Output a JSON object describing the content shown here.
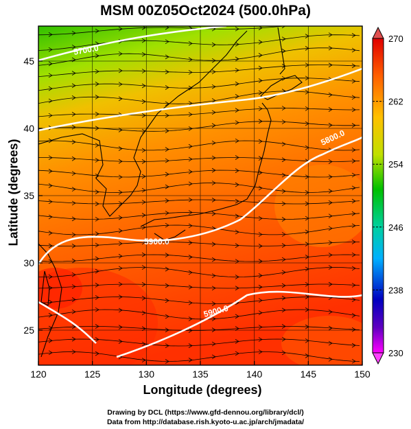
{
  "title": "MSM 00Z05Oct2024 (500.0hPa)",
  "x_axis_title": "Longitude (degrees)",
  "y_axis_title": "Latitude  (degrees)",
  "credit_line_1": "Drawing by DCL (https://www.gfd-dennou.org/library/dcl/)",
  "credit_line_2": "Data from http://database.rish.kyoto-u.ac.jp/arch/jmadata/",
  "map_data": {
    "type": "contour-streamline-map",
    "lon_range": [
      120,
      150
    ],
    "lat_range": [
      22.4,
      47.6
    ],
    "x_ticks": [
      "120",
      "125",
      "130",
      "135",
      "140",
      "145",
      "150"
    ],
    "y_ticks": [
      "25",
      "30",
      "35",
      "40",
      "45"
    ],
    "contour_labels": [
      "5700.0",
      "5800.0",
      "5900.0",
      "5900.0"
    ],
    "colorbar_ticks": [
      "270",
      "262",
      "254",
      "246",
      "238",
      "230"
    ],
    "colorbar_range": [
      230,
      270
    ],
    "colors": {
      "cold": "#ff00ff",
      "blue": "#0000c0",
      "cyan": "#00e0e0",
      "green": "#00c000",
      "yellow": "#e0e000",
      "orange": "#ff8000",
      "red": "#ff0000",
      "contour": "#ffffff",
      "coast": "#000000"
    }
  }
}
